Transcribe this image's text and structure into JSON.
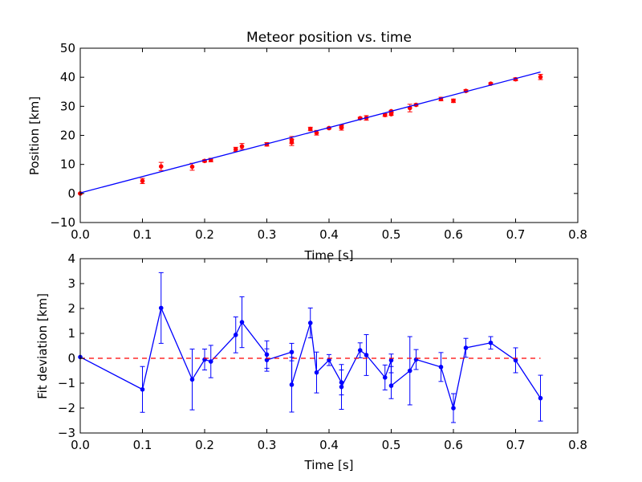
{
  "chart_data": [
    {
      "type": "scatter",
      "title": "Meteor position vs. time",
      "xlabel": "Time [s]",
      "ylabel": "Position [km]",
      "xlim": [
        0.0,
        0.8
      ],
      "ylim": [
        -10,
        50
      ],
      "xticks": [
        "0.0",
        "0.1",
        "0.2",
        "0.3",
        "0.4",
        "0.5",
        "0.6",
        "0.7",
        "0.8"
      ],
      "yticks": [
        "−10",
        "0",
        "10",
        "20",
        "30",
        "40",
        "50"
      ],
      "xtick_values": [
        0.0,
        0.1,
        0.2,
        0.3,
        0.4,
        0.5,
        0.6,
        0.7,
        0.8
      ],
      "ytick_values": [
        -10,
        0,
        10,
        20,
        30,
        40,
        50
      ],
      "grid": false,
      "series": [
        {
          "kind": "points-with-errorbars",
          "color": "#ff0000",
          "x": [
            0.0,
            0.1,
            0.13,
            0.18,
            0.2,
            0.21,
            0.25,
            0.26,
            0.3,
            0.34,
            0.34,
            0.37,
            0.38,
            0.4,
            0.42,
            0.42,
            0.45,
            0.46,
            0.49,
            0.5,
            0.5,
            0.53,
            0.54,
            0.58,
            0.6,
            0.62,
            0.66,
            0.7,
            0.74
          ],
          "y": [
            0.0,
            4.3,
            9.3,
            9.2,
            11.2,
            11.5,
            15.2,
            16.2,
            16.9,
            18.4,
            17.6,
            22.2,
            20.9,
            22.5,
            23.0,
            22.7,
            25.9,
            26.0,
            27.0,
            27.3,
            28.3,
            29.4,
            30.5,
            32.5,
            31.9,
            35.3,
            37.8,
            39.3,
            40.1
          ],
          "err": [
            0.2,
            0.9,
            1.4,
            1.2,
            0.4,
            0.6,
            0.7,
            1.0,
            0.6,
            1.2,
            1.1,
            0.6,
            0.8,
            0.3,
            0.5,
            0.9,
            0.3,
            0.8,
            0.5,
            0.4,
            0.3,
            1.3,
            0.4,
            0.6,
            0.6,
            0.4,
            0.3,
            0.5,
            0.9
          ]
        },
        {
          "kind": "fit-line",
          "color": "#0000ff",
          "x": [
            0.0,
            0.74
          ],
          "y": [
            0.2,
            41.8
          ]
        }
      ]
    },
    {
      "type": "line",
      "xlabel": "Time [s]",
      "ylabel": "Fit deviation [km]",
      "xlim": [
        0.0,
        0.8
      ],
      "ylim": [
        -3,
        4
      ],
      "xticks": [
        "0.0",
        "0.1",
        "0.2",
        "0.3",
        "0.4",
        "0.5",
        "0.6",
        "0.7",
        "0.8"
      ],
      "yticks": [
        "−3",
        "−2",
        "−1",
        "0",
        "1",
        "2",
        "3",
        "4"
      ],
      "xtick_values": [
        0.0,
        0.1,
        0.2,
        0.3,
        0.4,
        0.5,
        0.6,
        0.7,
        0.8
      ],
      "ytick_values": [
        -3,
        -2,
        -1,
        0,
        1,
        2,
        3,
        4
      ],
      "grid": false,
      "series": [
        {
          "kind": "line-with-errorbars",
          "color": "#0000ff",
          "x": [
            0.0,
            0.1,
            0.13,
            0.18,
            0.2,
            0.21,
            0.25,
            0.26,
            0.3,
            0.3,
            0.34,
            0.34,
            0.37,
            0.38,
            0.4,
            0.42,
            0.42,
            0.45,
            0.46,
            0.49,
            0.5,
            0.5,
            0.53,
            0.54,
            0.58,
            0.6,
            0.62,
            0.66,
            0.7,
            0.74
          ],
          "y": [
            0.05,
            -1.25,
            2.02,
            -0.85,
            -0.05,
            -0.13,
            0.94,
            1.45,
            0.15,
            -0.07,
            0.25,
            -1.06,
            1.42,
            -0.57,
            -0.07,
            -0.97,
            -1.15,
            0.32,
            0.13,
            -0.77,
            -0.08,
            -1.1,
            -0.5,
            -0.05,
            -0.35,
            -2.0,
            0.42,
            0.62,
            -0.08,
            -1.6
          ],
          "err": [
            0.0,
            0.92,
            1.42,
            1.22,
            0.42,
            0.65,
            0.72,
            1.02,
            0.55,
            0.45,
            0.35,
            1.1,
            0.6,
            0.82,
            0.22,
            0.5,
            0.9,
            0.3,
            0.82,
            0.5,
            0.25,
            0.52,
            1.37,
            0.4,
            0.58,
            0.58,
            0.38,
            0.25,
            0.5,
            0.92
          ]
        },
        {
          "kind": "zero-reference",
          "style": "dashed",
          "color": "#ff0000",
          "x": [
            0.0,
            0.74
          ],
          "y": [
            0,
            0
          ]
        }
      ]
    }
  ]
}
